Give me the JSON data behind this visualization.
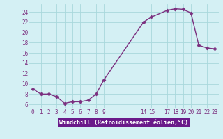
{
  "x": [
    0,
    1,
    2,
    3,
    4,
    5,
    6,
    7,
    8,
    9,
    14,
    15,
    17,
    18,
    19,
    20,
    21,
    22,
    23
  ],
  "y": [
    9.0,
    8.0,
    8.0,
    7.5,
    6.2,
    6.5,
    6.5,
    6.8,
    8.0,
    10.8,
    22.0,
    23.0,
    24.3,
    24.6,
    24.5,
    23.8,
    17.5,
    17.0,
    16.8
  ],
  "line_color": "#7b2f7f",
  "marker_color": "#7b2f7f",
  "bg_color": "#d4f0f4",
  "grid_color": "#a8d8dc",
  "tick_color": "#7b2f7f",
  "label_bg": "#6a1a8a",
  "xlabel": "Windchill (Refroidissement éolien,°C)",
  "xticks": [
    0,
    1,
    2,
    3,
    4,
    5,
    6,
    7,
    8,
    9,
    14,
    15,
    17,
    18,
    19,
    20,
    21,
    22,
    23
  ],
  "yticks": [
    6,
    8,
    10,
    12,
    14,
    16,
    18,
    20,
    22,
    24
  ],
  "ylim": [
    5.2,
    25.5
  ],
  "xlim": [
    -0.5,
    23.5
  ]
}
